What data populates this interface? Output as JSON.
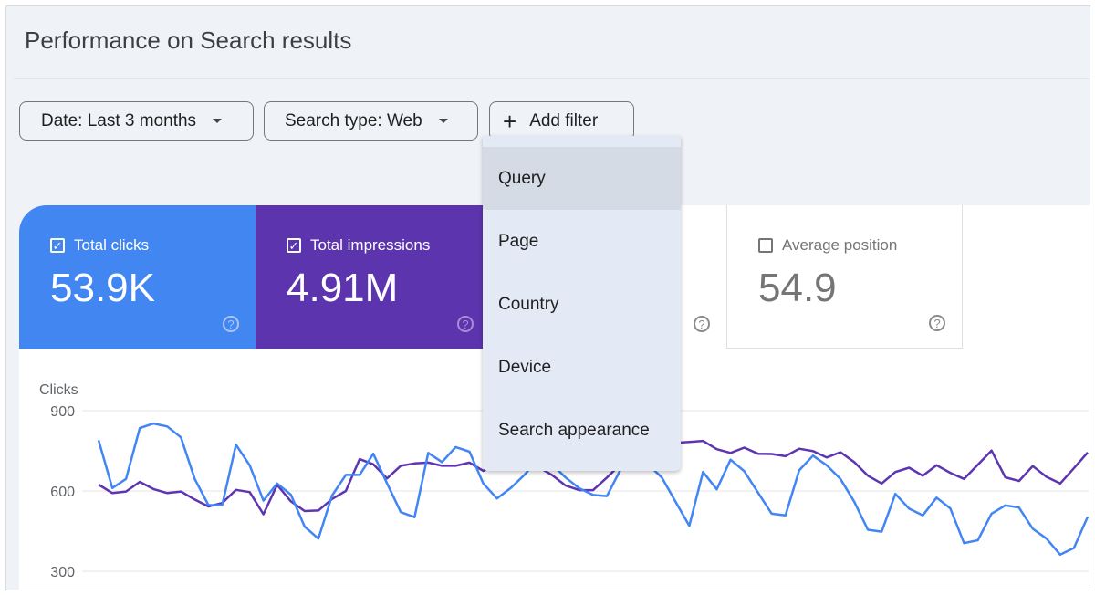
{
  "header": {
    "title": "Performance on Search results"
  },
  "filters": {
    "date": "Date: Last 3 months",
    "search_type": "Search type: Web",
    "add_filter": "Add filter"
  },
  "metrics": [
    {
      "label": "Total clicks",
      "value": "53.9K",
      "checked": true,
      "color": "#4285f4"
    },
    {
      "label": "Total impressions",
      "value": "4.91M",
      "checked": true,
      "color": "#5e35b1"
    },
    {
      "label": "",
      "value": "",
      "checked": false
    },
    {
      "label": "Average position",
      "value": "54.9",
      "checked": false
    }
  ],
  "dropdown": {
    "items": [
      "Query",
      "Page",
      "Country",
      "Device",
      "Search appearance"
    ],
    "highlighted": "Query"
  },
  "chart_data": {
    "type": "line",
    "ylabel": "Clicks",
    "yticks": [
      "900",
      "600",
      "300"
    ],
    "ylim": [
      300,
      900
    ],
    "grid": true,
    "series": [
      {
        "color": "#4285f4",
        "values": [
          790,
          611,
          645,
          835,
          852,
          841,
          800,
          645,
          547,
          547,
          773,
          696,
          564,
          628,
          586,
          467,
          422,
          583,
          660,
          660,
          739,
          628,
          521,
          502,
          742,
          708,
          764,
          747,
          628,
          572,
          611,
          660,
          720,
          700,
          650,
          610,
          585,
          581,
          680,
          740,
          700,
          650,
          560,
          470,
          671,
          606,
          717,
          674,
          594,
          515,
          509,
          677,
          732,
          696,
          645,
          560,
          455,
          448,
          589,
          534,
          509,
          575,
          535,
          405,
          416,
          515,
          546,
          538,
          459,
          422,
          362,
          387,
          504
        ]
      },
      {
        "color": "#5e35b1",
        "values": [
          624,
          592,
          598,
          634,
          607,
          592,
          598,
          568,
          542,
          555,
          604,
          596,
          513,
          623,
          561,
          525,
          527,
          570,
          600,
          719,
          700,
          647,
          694,
          703,
          706,
          694,
          694,
          706,
          675,
          700,
          723,
          700,
          690,
          660,
          620,
          603,
          603,
          650,
          700,
          740,
          760,
          770,
          780,
          783,
          787,
          756,
          742,
          762,
          739,
          738,
          730,
          758,
          749,
          725,
          745,
          708,
          657,
          628,
          671,
          687,
          657,
          696,
          668,
          645,
          698,
          751,
          651,
          637,
          693,
          653,
          628,
          685,
          744
        ]
      }
    ]
  }
}
